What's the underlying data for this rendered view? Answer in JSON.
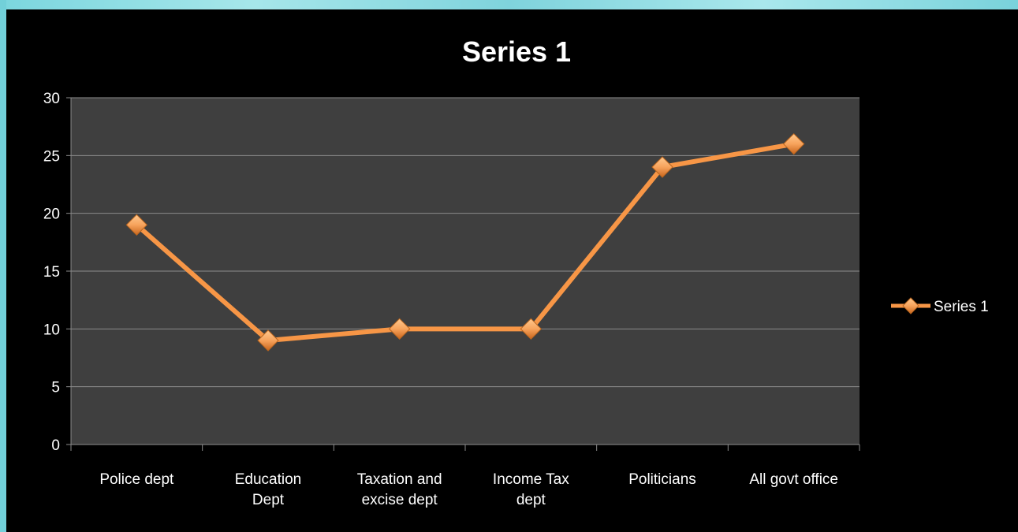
{
  "chart_data": {
    "type": "line",
    "title": "Series 1",
    "categories": [
      [
        "Police dept"
      ],
      [
        "Education",
        "Dept"
      ],
      [
        "Taxation and",
        "excise dept"
      ],
      [
        "Income Tax",
        "dept"
      ],
      [
        "Politicians"
      ],
      [
        "All govt office"
      ]
    ],
    "series": [
      {
        "name": "Series 1",
        "values": [
          19,
          9,
          10,
          10,
          24,
          26
        ]
      }
    ],
    "ylim": [
      0,
      30
    ],
    "yticks": [
      0,
      5,
      10,
      15,
      20,
      25,
      30
    ],
    "grid": true,
    "legend_position": "right",
    "colors": {
      "line": "#f79646",
      "marker": "#f7a35c",
      "plot_bg": "#3f3f3f",
      "frame_bg": "#000000",
      "grid": "#8c8c8c",
      "text": "#ffffff"
    }
  }
}
